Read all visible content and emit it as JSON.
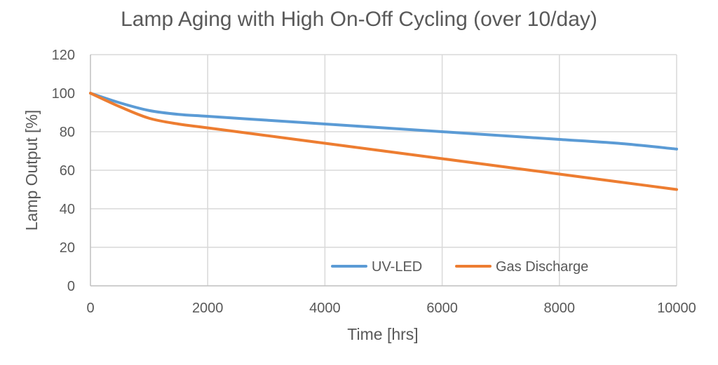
{
  "chart_data": {
    "type": "line",
    "title": "Lamp Aging with High On-Off Cycling (over 10/day)",
    "xlabel": "Time [hrs]",
    "ylabel": "Lamp Output [%]",
    "xlim": [
      0,
      10000
    ],
    "ylim": [
      0,
      120
    ],
    "x_ticks": [
      "0",
      "2000",
      "4000",
      "6000",
      "8000",
      "10000"
    ],
    "y_ticks": [
      "0",
      "20",
      "40",
      "60",
      "80",
      "100",
      "120"
    ],
    "grid": true,
    "legend_position": "bottom-right inside plot",
    "series": [
      {
        "name": "UV-LED",
        "color": "#5b9bd5",
        "x": [
          0,
          500,
          1000,
          1500,
          2000,
          3000,
          4000,
          5000,
          6000,
          7000,
          8000,
          9000,
          10000
        ],
        "y": [
          100,
          95,
          91,
          89,
          88,
          86,
          84,
          82,
          80,
          78,
          76,
          74,
          71
        ]
      },
      {
        "name": "Gas Discharge",
        "color": "#ed7d31",
        "x": [
          0,
          500,
          1000,
          1500,
          2000,
          3000,
          4000,
          5000,
          6000,
          7000,
          8000,
          9000,
          10000
        ],
        "y": [
          100,
          93,
          87,
          84,
          82,
          78,
          74,
          70,
          66,
          62,
          58,
          54,
          50
        ]
      }
    ]
  }
}
